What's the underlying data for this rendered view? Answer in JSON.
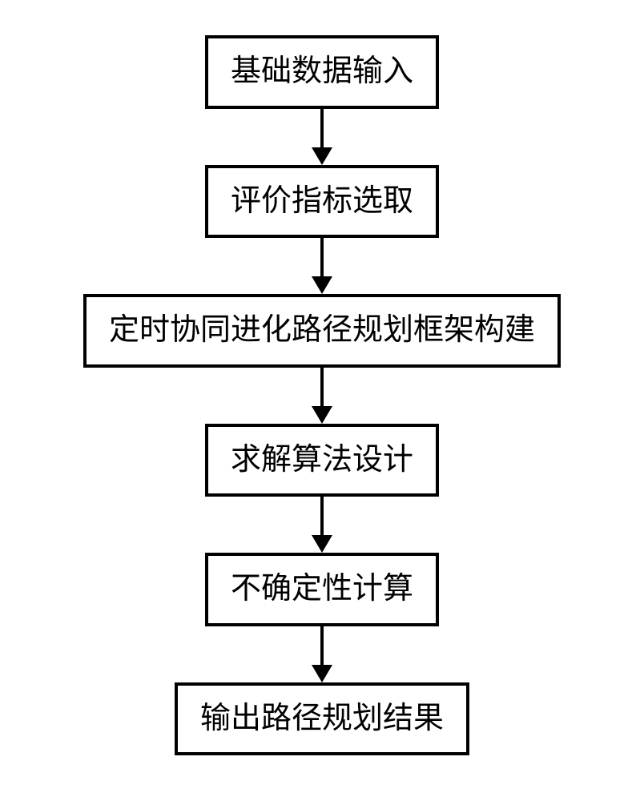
{
  "flowchart": {
    "type": "flowchart",
    "direction": "vertical",
    "background_color": "#ffffff",
    "node_style": {
      "border_color": "#000000",
      "border_width": 4,
      "fill_color": "#ffffff",
      "font_color": "#000000",
      "font_size": 38,
      "font_family": "SimSun"
    },
    "arrow_style": {
      "line_color": "#000000",
      "line_width": 4,
      "head_width": 26,
      "head_height": 22,
      "gap_height": 70
    },
    "nodes": [
      {
        "id": "n1",
        "label": "基础数据输入"
      },
      {
        "id": "n2",
        "label": "评价指标选取"
      },
      {
        "id": "n3",
        "label": "定时协同进化路径规划框架构建"
      },
      {
        "id": "n4",
        "label": "求解算法设计"
      },
      {
        "id": "n5",
        "label": "不确定性计算"
      },
      {
        "id": "n6",
        "label": "输出路径规划结果"
      }
    ],
    "edges": [
      {
        "from": "n1",
        "to": "n2"
      },
      {
        "from": "n2",
        "to": "n3"
      },
      {
        "from": "n3",
        "to": "n4"
      },
      {
        "from": "n4",
        "to": "n5"
      },
      {
        "from": "n5",
        "to": "n6"
      }
    ]
  }
}
